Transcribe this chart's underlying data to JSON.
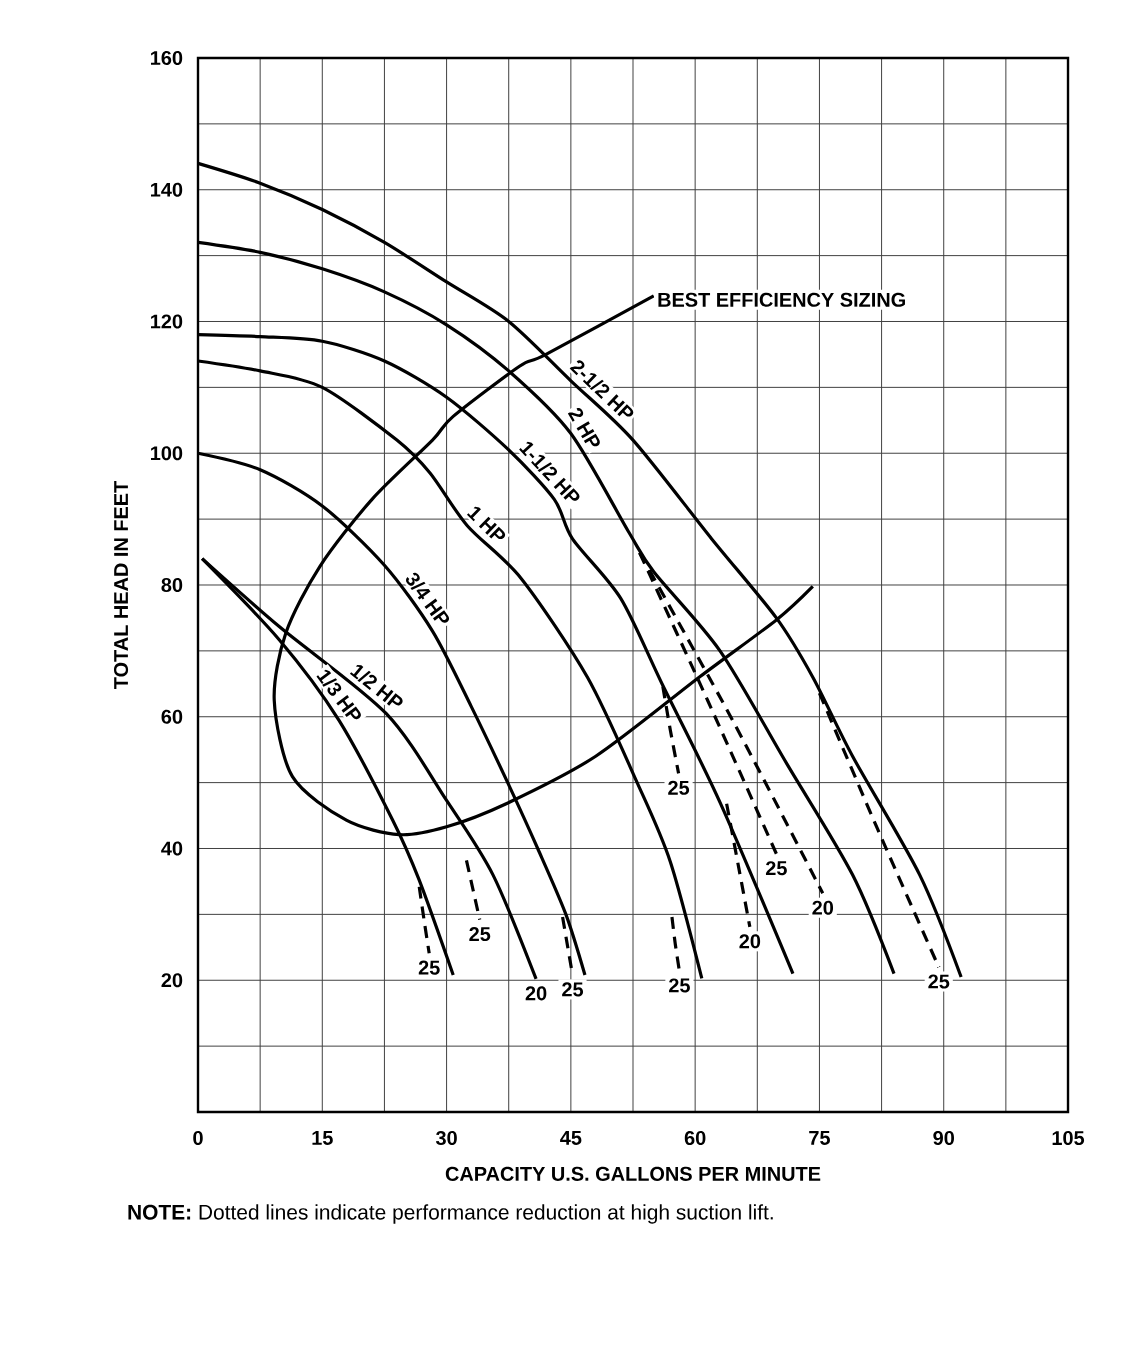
{
  "chart_data": {
    "type": "line",
    "xlabel": "CAPACITY U.S. GALLONS PER MINUTE",
    "ylabel": "TOTAL HEAD IN FEET",
    "xlim": [
      0,
      105
    ],
    "ylim": [
      0,
      160
    ],
    "xticks": [
      0,
      {
        "value": 7.5,
        "label": null
      },
      15,
      {
        "value": 22.5,
        "label": null
      },
      30,
      {
        "value": 37.5,
        "label": null
      },
      45,
      {
        "value": 52.5,
        "label": null
      },
      60,
      {
        "value": 67.5,
        "label": null
      },
      75,
      {
        "value": 82.5,
        "label": null
      },
      90,
      {
        "value": 97.5,
        "label": null
      },
      105
    ],
    "yticks": [
      {
        "value": 10,
        "label": null
      },
      20,
      {
        "value": 30,
        "label": null
      },
      40,
      {
        "value": 50,
        "label": null
      },
      60,
      {
        "value": 70,
        "label": null
      },
      80,
      {
        "value": 90,
        "label": null
      },
      100,
      {
        "value": 110,
        "label": null
      },
      120,
      {
        "value": 130,
        "label": null
      },
      140,
      {
        "value": 150,
        "label": null
      },
      160
    ],
    "grid": true,
    "series": [
      {
        "name": "2-1/2 HP",
        "color": "#000000",
        "line_style": "solid",
        "x": [
          0,
          7.5,
          15,
          22.5,
          30,
          37.5,
          45,
          52.5,
          62,
          69.8,
          74.2,
          79,
          87.1,
          92.1
        ],
        "values": [
          144,
          141,
          137,
          132,
          126,
          120,
          111,
          102,
          87,
          75,
          66,
          54,
          36,
          20.5
        ]
      },
      {
        "name": "2 HP",
        "color": "#000000",
        "line_style": "solid",
        "x": [
          0,
          7.5,
          15,
          22.5,
          30,
          37.5,
          45,
          52,
          55,
          63,
          71,
          79,
          84
        ],
        "values": [
          132,
          130.5,
          128,
          124.5,
          119.5,
          112.5,
          103,
          88,
          82,
          70,
          53,
          36,
          21
        ]
      },
      {
        "name": "1-1/2 HP",
        "color": "#000000",
        "line_style": "solid",
        "x": [
          0,
          7.5,
          15,
          22.5,
          30,
          37.5,
          43,
          45.2,
          51,
          56,
          63,
          71.8
        ],
        "values": [
          118,
          117.7,
          117,
          114,
          108.5,
          100.5,
          93,
          87,
          78,
          65,
          47,
          21
        ]
      },
      {
        "name": "1 HP",
        "color": "#000000",
        "line_style": "solid",
        "x": [
          0,
          7.5,
          15,
          24,
          28,
          32.5,
          39,
          47,
          53,
          57,
          60.8
        ],
        "values": [
          114,
          112.5,
          110,
          102,
          97,
          89,
          81,
          66,
          50,
          38,
          20.3
        ]
      },
      {
        "name": "3/4 HP",
        "color": "#000000",
        "line_style": "solid",
        "x": [
          0,
          7.5,
          15,
          22.5,
          28.3,
          33,
          37.6,
          41,
          44.4,
          46.7
        ],
        "values": [
          100,
          97.5,
          92,
          83,
          73,
          61.5,
          49.4,
          40,
          30,
          20.8
        ]
      },
      {
        "name": "1/2 HP",
        "color": "#000000",
        "line_style": "solid",
        "x": [
          0.5,
          9.8,
          22.7,
          30,
          35.6,
          40.8
        ],
        "values": [
          84,
          73.7,
          60.5,
          47.3,
          36,
          20.2
        ]
      },
      {
        "name": "1/3 HP",
        "color": "#000000",
        "line_style": "solid",
        "x": [
          0.5,
          9.8,
          17,
          23.5,
          26.7,
          30.8
        ],
        "values": [
          84,
          71.7,
          59.5,
          44.3,
          35.2,
          20.8
        ]
      },
      {
        "color": "#000000",
        "line_style": "dashed",
        "x": [
          26.7,
          27.3,
          27.9
        ],
        "values": [
          34.2,
          29,
          24.1
        ]
      },
      {
        "color": "#000000",
        "line_style": "dashed",
        "x": [
          32.4,
          33.2,
          34
        ],
        "values": [
          38.2,
          33.7,
          29.2
        ]
      },
      {
        "color": "#000000",
        "line_style": "dashed",
        "x": [
          44,
          44.6,
          45.2
        ],
        "values": [
          29.6,
          25.2,
          20.8
        ]
      },
      {
        "color": "#000000",
        "line_style": "dashed",
        "x": [
          57.2,
          57.6,
          58.1
        ],
        "values": [
          29.6,
          25.5,
          21.4
        ]
      },
      {
        "color": "#000000",
        "line_style": "dashed",
        "x": [
          56.1,
          57,
          58
        ],
        "values": [
          64.6,
          58,
          51.4
        ]
      },
      {
        "color": "#000000",
        "line_style": "dashed",
        "x": [
          63.8,
          65.2,
          66.6
        ],
        "values": [
          46.8,
          37.5,
          28.1
        ]
      },
      {
        "color": "#000000",
        "line_style": "dashed",
        "x": [
          53.3,
          61.5,
          69.8
        ],
        "values": [
          84.9,
          62.5,
          39.2
        ]
      },
      {
        "color": "#000000",
        "line_style": "dashed",
        "x": [
          53.3,
          64.5,
          75.4
        ],
        "values": [
          84.9,
          59.5,
          33.2
        ]
      },
      {
        "color": "#000000",
        "line_style": "dashed",
        "x": [
          75,
          82,
          89.4
        ],
        "values": [
          63.6,
          43,
          22
        ]
      },
      {
        "color": "#000000",
        "line_style": "solid",
        "x": [
          74.2,
          69.8,
          60.6,
          48,
          37.2,
          30,
          24.3,
          17.9,
          11.4,
          9.2,
          10.6,
          14.7,
          21,
          28.3,
          30.8,
          38.8,
          42,
          55
        ],
        "values": [
          79.8,
          74.7,
          66.1,
          54,
          46.8,
          43.3,
          42.1,
          44.3,
          50.9,
          62.5,
          72.7,
          82.8,
          93,
          102,
          105.6,
          113.2,
          115,
          123.9
        ]
      }
    ],
    "annotations": [
      {
        "text": "BEST EFFICIENCY SIZING",
        "x": 55,
        "y": 123.9
      },
      {
        "text": "25",
        "x": 27.9,
        "y": 24.1
      },
      {
        "text": "25",
        "x": 34,
        "y": 29.2
      },
      {
        "text": "20",
        "x": 40.8,
        "y": 20.2
      },
      {
        "text": "25",
        "x": 45.2,
        "y": 20.8
      },
      {
        "text": "25",
        "x": 58.1,
        "y": 21.4
      },
      {
        "text": "25",
        "x": 58,
        "y": 51.4
      },
      {
        "text": "20",
        "x": 66.6,
        "y": 28.1
      },
      {
        "text": "25",
        "x": 69.8,
        "y": 39.2
      },
      {
        "text": "20",
        "x": 75.4,
        "y": 33.2
      },
      {
        "text": "25",
        "x": 89.4,
        "y": 22
      },
      "**NOTE:** Dotted lines indicate performance reduction at high suction lift."
    ]
  }
}
